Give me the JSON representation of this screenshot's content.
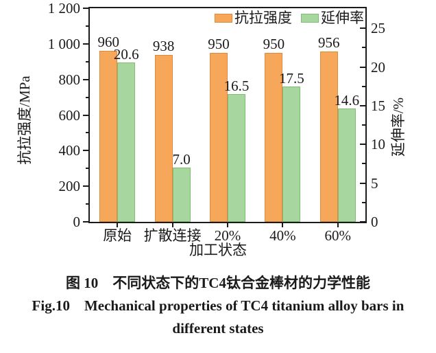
{
  "chart_data": {
    "type": "bar",
    "title": "",
    "categories": [
      "原始",
      "扩散连接",
      "20%",
      "40%",
      "60%"
    ],
    "series": [
      {
        "key": "tensile-strength",
        "name": "抗拉强度",
        "axis": "left",
        "values": [
          960,
          938,
          950,
          950,
          956
        ],
        "value_labels": [
          "960",
          "938",
          "950",
          "950",
          "956"
        ],
        "fill": "#F7A75A",
        "stroke": "#DD8A3D"
      },
      {
        "key": "elongation",
        "name": "延伸率",
        "axis": "right",
        "values": [
          20.6,
          7.0,
          16.5,
          17.5,
          14.6
        ],
        "value_labels": [
          "20.6",
          "7.0",
          "16.5",
          "17.5",
          "14.6"
        ],
        "fill": "#A7D69E",
        "stroke": "#7FBD76"
      }
    ],
    "left_axis": {
      "label": "抗拉强度/MPa",
      "min": 0,
      "max": 1200,
      "ticks": [
        {
          "v": 0,
          "t": "0"
        },
        {
          "v": 200,
          "t": "200"
        },
        {
          "v": 400,
          "t": "400"
        },
        {
          "v": 600,
          "t": "600"
        },
        {
          "v": 800,
          "t": "800"
        },
        {
          "v": 1000,
          "t": "1 000"
        },
        {
          "v": 1200,
          "t": "1 200"
        }
      ],
      "minor": [
        100,
        300,
        500,
        700,
        900,
        1100
      ]
    },
    "right_axis": {
      "label": "延伸率/%",
      "min": 0,
      "max": 27.6,
      "ticks": [
        {
          "v": 0,
          "t": "0"
        },
        {
          "v": 5,
          "t": "5"
        },
        {
          "v": 10,
          "t": "10"
        },
        {
          "v": 15,
          "t": "15"
        },
        {
          "v": 20,
          "t": "20"
        },
        {
          "v": 25,
          "t": "25"
        }
      ],
      "minor": [
        2.5,
        7.5,
        12.5,
        17.5,
        22.5
      ]
    },
    "x_axis": {
      "label": "加工状态"
    },
    "legend": {
      "position": "top-right-inside",
      "entries": [
        "抗拉强度",
        "延伸率"
      ]
    },
    "grid": false,
    "frame_color": "#1a1a1a"
  },
  "caption": {
    "zh": "图 10　不同状态下的TC4钛合金棒材的力学性能",
    "en_line1": "Fig.10 Mechanical properties of TC4 titanium alloy bars in",
    "en_line2": "different states"
  },
  "colors": {
    "axis": "#1a1a1a",
    "text": "#1a1a1a",
    "background": "#ffffff"
  }
}
